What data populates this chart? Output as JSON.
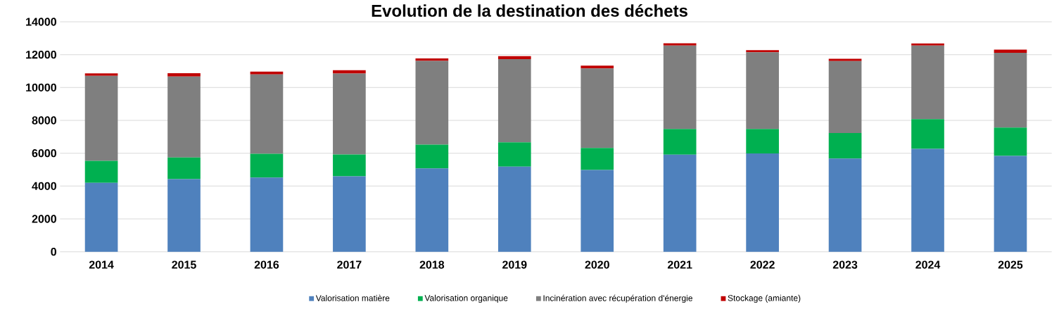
{
  "chart_data": {
    "type": "bar",
    "stacked": true,
    "title": "Evolution de la destination des déchets",
    "categories": [
      "2014",
      "2015",
      "2016",
      "2017",
      "2018",
      "2019",
      "2020",
      "2021",
      "2022",
      "2023",
      "2024",
      "2025"
    ],
    "series": [
      {
        "name": "Valorisation matière",
        "color": "#4f81bd",
        "values": [
          4200,
          4420,
          4520,
          4590,
          5080,
          5180,
          4980,
          5910,
          5990,
          5680,
          6260,
          5840
        ]
      },
      {
        "name": "Valorisation organique",
        "color": "#00b050",
        "values": [
          1340,
          1320,
          1440,
          1330,
          1440,
          1480,
          1340,
          1570,
          1480,
          1550,
          1820,
          1720
        ]
      },
      {
        "name": "Incinération avec récupération d'énergie",
        "color": "#7f7f7f",
        "values": [
          5170,
          4930,
          4840,
          4930,
          5100,
          5070,
          4840,
          5070,
          4680,
          4380,
          4470,
          4550
        ]
      },
      {
        "name": "Stockage (amiante)",
        "color": "#c00000",
        "values": [
          150,
          200,
          170,
          200,
          150,
          180,
          170,
          140,
          130,
          140,
          130,
          200
        ]
      }
    ],
    "ylim": [
      0,
      14000
    ],
    "yticks": [
      0,
      2000,
      4000,
      6000,
      8000,
      10000,
      12000,
      14000
    ],
    "grid": "y",
    "legend": "bottom"
  }
}
